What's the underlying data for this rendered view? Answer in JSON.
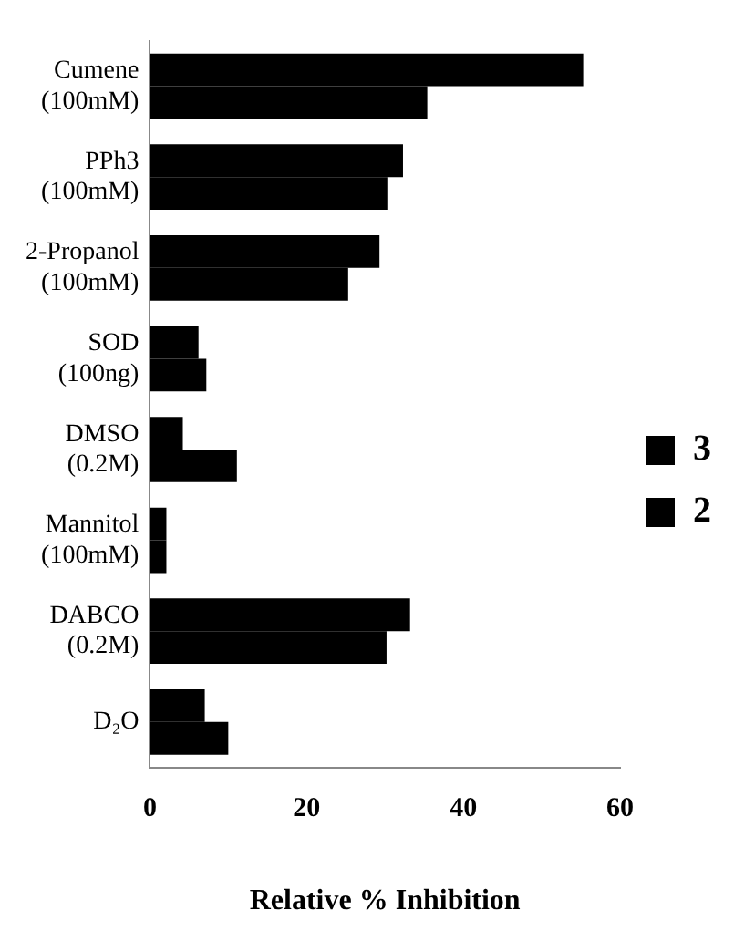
{
  "chart_data": {
    "type": "bar",
    "orientation": "horizontal",
    "xlabel": "Relative % Inhibition",
    "categories": [
      "Cumene\n(100mM)",
      "PPh3\n(100mM)",
      "2-Propanol\n(100mM)",
      "SOD\n(100ng)",
      "DMSO\n(0.2M)",
      "Mannitol\n(100mM)",
      "DABCO\n(0.2M)",
      "D₂O"
    ],
    "series": [
      {
        "name": "3",
        "color": "#000000",
        "values": [
          55.3,
          32.3,
          29.3,
          6.2,
          4.2,
          2.1,
          33.2,
          7.0
        ]
      },
      {
        "name": "2",
        "color": "#000000",
        "values": [
          35.4,
          30.3,
          25.3,
          7.2,
          11.1,
          2.1,
          30.2,
          10.0
        ]
      }
    ],
    "xlim": [
      0,
      60
    ],
    "xticks": [
      0,
      20,
      40,
      60
    ],
    "grid": false,
    "legend": "right"
  }
}
